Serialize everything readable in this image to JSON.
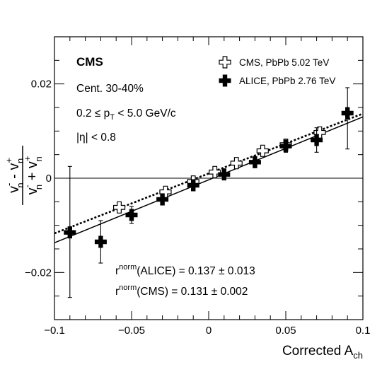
{
  "chart_data": {
    "type": "scatter",
    "experiment": "CMS",
    "xlabel": "Corrected A",
    "xlabel_sub": "ch",
    "ylabel": "(v⁻ₙ − v⁺ₙ) / (v⁻ₙ + v⁺ₙ)",
    "ylabel_num_a": "v",
    "ylabel_num_minus": "-",
    "ylabel_mid": " - ",
    "ylabel_plus": "+",
    "ylabel_den_mid": " + ",
    "ylabel_n": "n",
    "xlim": [
      -0.1,
      0.1
    ],
    "ylim": [
      -0.03,
      0.03
    ],
    "xticks": [
      -0.1,
      -0.05,
      0,
      0.05,
      0.1
    ],
    "xtick_labels": [
      "−0.1",
      "−0.05",
      "0",
      "0.05",
      "0.1"
    ],
    "yticks": [
      -0.02,
      0,
      0.02
    ],
    "ytick_labels": [
      "−0.02",
      "0",
      "0.02"
    ],
    "annotations": {
      "centrality": "Cent. 30-40%",
      "pt_pre": "0.2 ≤ p",
      "pt_sub": "T",
      "pt_post": " < 5.0 GeV/c",
      "eta": "|η| < 0.8",
      "r_alice_pre": "r",
      "r_sup": "norm",
      "r_alice_post": "(ALICE) = 0.137 ± 0.013",
      "r_cms_post": "(CMS) = 0.131 ± 0.002"
    },
    "legend_position": "top-right",
    "series": [
      {
        "name": "CMS, PbPb 5.02 TeV",
        "marker": "open-cross",
        "fit": "dotted",
        "x": [
          -0.058,
          -0.028,
          -0.01,
          0.004,
          0.018,
          0.035,
          0.05,
          0.072
        ],
        "y": [
          -0.0062,
          -0.0029,
          -0.0007,
          0.0013,
          0.0032,
          0.0058,
          0.0071,
          0.0097
        ]
      },
      {
        "name": "ALICE, PbPb 2.76 TeV",
        "marker": "filled-cross",
        "fit": "solid",
        "x": [
          -0.09,
          -0.07,
          -0.05,
          -0.03,
          -0.01,
          0.01,
          0.03,
          0.05,
          0.07,
          0.09
        ],
        "y": [
          -0.0115,
          -0.0135,
          -0.0078,
          -0.0045,
          -0.0015,
          0.0008,
          0.0034,
          0.0068,
          0.0081,
          0.0138
        ],
        "err_low": [
          0.0138,
          0.0045,
          0.0018,
          0.0012,
          0.0009,
          0.0008,
          0.001,
          0.0013,
          0.0026,
          0.0076
        ],
        "err_high": [
          0.014,
          0.0045,
          0.0018,
          0.0012,
          0.0009,
          0.0008,
          0.001,
          0.0013,
          0.0026,
          0.0054
        ]
      }
    ],
    "fits": [
      {
        "series": "CMS, PbPb 5.02 TeV",
        "style": "dotted",
        "x": [
          -0.1,
          0.1
        ],
        "y": [
          -0.0117,
          0.0137
        ]
      },
      {
        "series": "ALICE, PbPb 2.76 TeV",
        "style": "solid",
        "x": [
          -0.1,
          0.1
        ],
        "y": [
          -0.0137,
          0.013
        ]
      }
    ],
    "reference_line_y": 0
  }
}
